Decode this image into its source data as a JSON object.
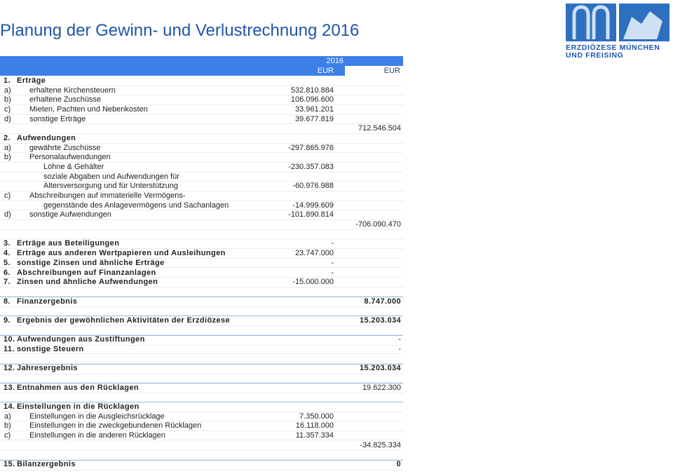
{
  "header": {
    "title": "Planung der Gewinn- und Verlustrechnung 2016",
    "logo": {
      "line1": "ERZDIÖZESE MÜNCHEN",
      "line2": "UND FREISING"
    }
  },
  "table": {
    "columns": {
      "year": "2016",
      "unit1": "EUR",
      "unit2": "EUR"
    },
    "rows": [
      {
        "num": "1.",
        "label": "Erträge"
      },
      {
        "letter": "a)",
        "label": "erhaltene Kirchensteuern",
        "col1": "532.810.884"
      },
      {
        "letter": "b)",
        "label": "erhaltene Zuschüsse",
        "col1": "106.096.600"
      },
      {
        "letter": "c)",
        "label": "Mieten, Pachten und Nebenkosten",
        "col1": "33.961.201"
      },
      {
        "letter": "d)",
        "label": "sonstige Erträge",
        "col1": "39.677.819"
      },
      {
        "col2": "712.546.504"
      },
      {
        "num": "2.",
        "label": "Aufwendungen"
      },
      {
        "letter": "a)",
        "label": "gewährte Zuschüsse",
        "col1": "-297.865.976"
      },
      {
        "letter": "b)",
        "label": "Personalaufwendungen"
      },
      {
        "label": "Löhne & Gehälter",
        "col1": "-230.357.083"
      },
      {
        "label": "soziale Abgaben und Aufwendungen für"
      },
      {
        "label": "Altersversorgung und für Unterstützung",
        "col1": "-60.976.988"
      },
      {
        "letter": "c)",
        "label": "Abschreibungen auf immaterielle Vermögens-"
      },
      {
        "label": "gegenstände des Anlagevermögens und Sachanlagen",
        "col1": "-14.999.609"
      },
      {
        "letter": "d)",
        "label": "sonstige Aufwendungen",
        "col1": "-101.890.814"
      },
      {
        "col2": "-706.090.470"
      },
      {},
      {
        "num": "3.",
        "label": "Erträge aus Beteiligungen",
        "col1": "-"
      },
      {
        "num": "4.",
        "label": "Erträge aus anderen Wertpapieren und Ausleihungen",
        "col1": "23.747.000"
      },
      {
        "num": "5.",
        "label": "sonstige Zinsen und ähnliche Erträge",
        "col1": "-"
      },
      {
        "num": "6.",
        "label": "Abschreibungen auf Finanzanlagen",
        "col1": "-"
      },
      {
        "num": "7.",
        "label": "Zinsen und ähnliche Aufwendungen",
        "col1": "-15.000.000"
      },
      {},
      {
        "num": "8.",
        "label": "Finanzergebnis",
        "col2": "8.747.000"
      },
      {},
      {
        "num": "9.",
        "label": "Ergebnis der gewöhnlichen Aktivitäten der Erzdiözese",
        "col2": "15.203.034"
      },
      {},
      {
        "num": "10.",
        "label": "Aufwendungen aus Zustiftungen",
        "col2": "-"
      },
      {
        "num": "11.",
        "label": "sonstige Steuern",
        "col2": "-"
      },
      {},
      {
        "num": "12.",
        "label": "Jahresergebnis",
        "col2": "15.203.034"
      },
      {},
      {
        "num": "13.",
        "label": "Entnahmen aus den Rücklagen",
        "col2": "19.622.300"
      },
      {},
      {
        "num": "14.",
        "label": "Einstellungen in die Rücklagen"
      },
      {
        "letter": "a)",
        "label": "Einstellungen in die Ausgleichsrücklage",
        "col1": "7.350.000"
      },
      {
        "letter": "b)",
        "label": "Einstellungen in die zweckgebundenen Rücklagen",
        "col1": "16.118.000"
      },
      {
        "letter": "c)",
        "label": "Einstellungen in die anderen Rücklagen",
        "col1": "11.357.334"
      },
      {
        "col2": "-34.825.334"
      },
      {},
      {
        "num": "15.",
        "label": "Bilanzergebnis",
        "col2": "0"
      }
    ]
  }
}
